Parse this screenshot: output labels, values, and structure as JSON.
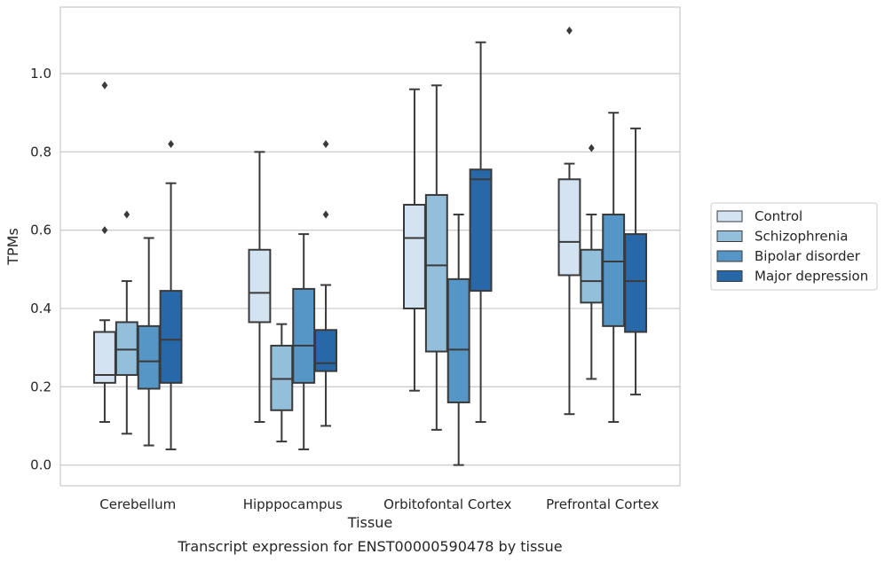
{
  "chart_data": {
    "type": "box",
    "xlabel": "Tissue",
    "ylabel": "TPMs",
    "caption": "Transcript expression for ENST00000590478 by tissue",
    "ylim": [
      -0.053,
      1.17
    ],
    "yticks": [
      0.0,
      0.2,
      0.4,
      0.6,
      0.8,
      1.0
    ],
    "ytick_labels": [
      "0.0",
      "0.2",
      "0.4",
      "0.6",
      "0.8",
      "1.0"
    ],
    "grid": "horizontal",
    "legend_position": "right",
    "categories": [
      "Cerebellum",
      "Hipppocampus",
      "Orbitofontal Cortex",
      "Prefrontal Cortex"
    ],
    "series": [
      {
        "name": "Control",
        "color": "#d4e3f2",
        "boxes": [
          {
            "whislo": 0.11,
            "q1": 0.21,
            "med": 0.23,
            "q3": 0.34,
            "whishi": 0.37,
            "fliers": [
              0.6,
              0.97
            ]
          },
          {
            "whislo": 0.11,
            "q1": 0.365,
            "med": 0.44,
            "q3": 0.55,
            "whishi": 0.8,
            "fliers": []
          },
          {
            "whislo": 0.19,
            "q1": 0.4,
            "med": 0.58,
            "q3": 0.665,
            "whishi": 0.96,
            "fliers": []
          },
          {
            "whislo": 0.13,
            "q1": 0.485,
            "med": 0.57,
            "q3": 0.73,
            "whishi": 0.77,
            "fliers": [
              1.11
            ]
          }
        ]
      },
      {
        "name": "Schizophrenia",
        "color": "#93bfdb",
        "boxes": [
          {
            "whislo": 0.08,
            "q1": 0.23,
            "med": 0.295,
            "q3": 0.365,
            "whishi": 0.47,
            "fliers": [
              0.64
            ]
          },
          {
            "whislo": 0.06,
            "q1": 0.14,
            "med": 0.22,
            "q3": 0.305,
            "whishi": 0.36,
            "fliers": []
          },
          {
            "whislo": 0.09,
            "q1": 0.29,
            "med": 0.51,
            "q3": 0.69,
            "whishi": 0.97,
            "fliers": []
          },
          {
            "whislo": 0.22,
            "q1": 0.415,
            "med": 0.47,
            "q3": 0.55,
            "whishi": 0.64,
            "fliers": [
              0.81
            ]
          }
        ]
      },
      {
        "name": "Bipolar disorder",
        "color": "#5596c6",
        "boxes": [
          {
            "whislo": 0.05,
            "q1": 0.195,
            "med": 0.265,
            "q3": 0.355,
            "whishi": 0.58,
            "fliers": []
          },
          {
            "whislo": 0.04,
            "q1": 0.21,
            "med": 0.305,
            "q3": 0.45,
            "whishi": 0.59,
            "fliers": []
          },
          {
            "whislo": 0.0,
            "q1": 0.16,
            "med": 0.295,
            "q3": 0.475,
            "whishi": 0.64,
            "fliers": []
          },
          {
            "whislo": 0.11,
            "q1": 0.355,
            "med": 0.52,
            "q3": 0.64,
            "whishi": 0.9,
            "fliers": []
          }
        ]
      },
      {
        "name": "Major depression",
        "color": "#2868a8",
        "boxes": [
          {
            "whislo": 0.04,
            "q1": 0.21,
            "med": 0.32,
            "q3": 0.445,
            "whishi": 0.72,
            "fliers": [
              0.82
            ]
          },
          {
            "whislo": 0.1,
            "q1": 0.24,
            "med": 0.26,
            "q3": 0.345,
            "whishi": 0.46,
            "fliers": [
              0.64,
              0.82
            ]
          },
          {
            "whislo": 0.11,
            "q1": 0.445,
            "med": 0.73,
            "q3": 0.755,
            "whishi": 1.08,
            "fliers": []
          },
          {
            "whislo": 0.18,
            "q1": 0.34,
            "med": 0.47,
            "q3": 0.59,
            "whishi": 0.86,
            "fliers": []
          }
        ]
      }
    ]
  }
}
